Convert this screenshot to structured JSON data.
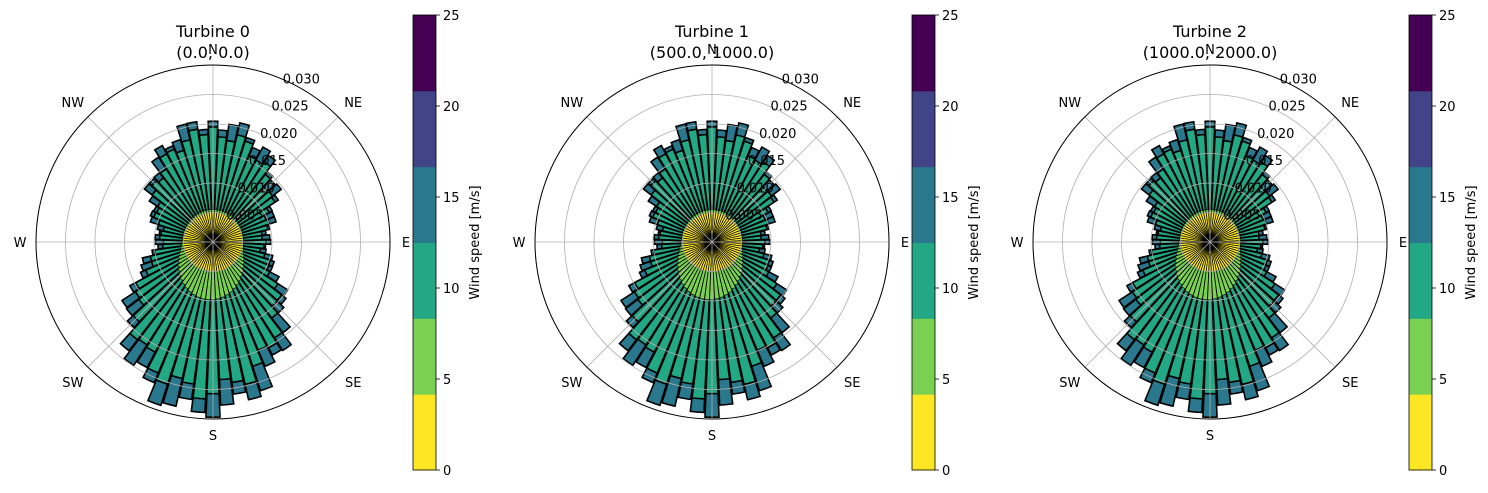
{
  "chart_data": [
    {
      "type": "windrose",
      "title_line1": "Turbine 0",
      "title_line2": "(0.0, 0.0)",
      "direction_labels": [
        "N",
        "NE",
        "E",
        "SE",
        "S",
        "SW",
        "W",
        "NW"
      ],
      "radial_ticks": [
        0.005,
        0.01,
        0.015,
        0.02,
        0.025,
        0.03
      ],
      "radial_tick_labels": [
        "0.005",
        "0.010",
        "0.015",
        "0.020",
        "0.025",
        "0.030"
      ],
      "rlim": [
        0,
        0.03
      ],
      "sectors": 72,
      "speed_bins": [
        [
          0,
          5
        ],
        [
          5,
          10
        ],
        [
          10,
          15
        ],
        [
          15,
          20
        ],
        [
          20,
          25
        ]
      ],
      "bin_colors": [
        "#fde725",
        "#7ad151",
        "#22a884",
        "#2a788e",
        "#414487",
        "#440154"
      ],
      "cumulative_frequency_by_bin": {
        "lobe_north_deg": 0,
        "lobe_south_deg": 185,
        "max_north": [
          0.005,
          0.0055,
          0.0185,
          0.0203
        ],
        "max_south": [
          0.005,
          0.0098,
          0.0253,
          0.0288
        ],
        "min_east_west": [
          0.005,
          0.0052,
          0.0085,
          0.0093
        ]
      },
      "grid": true
    },
    {
      "type": "windrose",
      "title_line1": "Turbine 1",
      "title_line2": "(500.0, 1000.0)",
      "direction_labels": [
        "N",
        "NE",
        "E",
        "SE",
        "S",
        "SW",
        "W",
        "NW"
      ],
      "radial_ticks": [
        0.005,
        0.01,
        0.015,
        0.02,
        0.025,
        0.03
      ],
      "radial_tick_labels": [
        "0.005",
        "0.010",
        "0.015",
        "0.020",
        "0.025",
        "0.030"
      ],
      "rlim": [
        0,
        0.03
      ],
      "sectors": 72,
      "speed_bins": [
        [
          0,
          5
        ],
        [
          5,
          10
        ],
        [
          10,
          15
        ],
        [
          15,
          20
        ],
        [
          20,
          25
        ]
      ],
      "bin_colors": [
        "#fde725",
        "#7ad151",
        "#22a884",
        "#2a788e",
        "#414487",
        "#440154"
      ],
      "cumulative_frequency_by_bin": {
        "lobe_north_deg": 0,
        "lobe_south_deg": 185,
        "max_north": [
          0.005,
          0.0055,
          0.0185,
          0.0203
        ],
        "max_south": [
          0.005,
          0.0098,
          0.0253,
          0.0288
        ],
        "min_east_west": [
          0.005,
          0.0052,
          0.0085,
          0.0093
        ]
      },
      "grid": true
    },
    {
      "type": "windrose",
      "title_line1": "Turbine 2",
      "title_line2": "(1000.0, 2000.0)",
      "direction_labels": [
        "N",
        "NE",
        "E",
        "SE",
        "S",
        "SW",
        "W",
        "NW"
      ],
      "radial_ticks": [
        0.005,
        0.01,
        0.015,
        0.02,
        0.025,
        0.03
      ],
      "radial_tick_labels": [
        "0.005",
        "0.010",
        "0.015",
        "0.020",
        "0.025",
        "0.030"
      ],
      "rlim": [
        0,
        0.03
      ],
      "sectors": 72,
      "speed_bins": [
        [
          0,
          5
        ],
        [
          5,
          10
        ],
        [
          10,
          15
        ],
        [
          15,
          20
        ],
        [
          20,
          25
        ]
      ],
      "bin_colors": [
        "#fde725",
        "#7ad151",
        "#22a884",
        "#2a788e",
        "#414487",
        "#440154"
      ],
      "cumulative_frequency_by_bin": {
        "lobe_north_deg": 0,
        "lobe_south_deg": 185,
        "max_north": [
          0.005,
          0.0055,
          0.0185,
          0.0203
        ],
        "max_south": [
          0.005,
          0.0098,
          0.0253,
          0.0288
        ],
        "min_east_west": [
          0.005,
          0.0052,
          0.0085,
          0.0093
        ]
      },
      "grid": true
    }
  ],
  "colorbar": {
    "label": "Wind speed [m/s]",
    "ticks": [
      0,
      5,
      10,
      15,
      20,
      25
    ],
    "tick_labels": [
      "0",
      "5",
      "10",
      "15",
      "20",
      "25"
    ],
    "colors": [
      "#fde725",
      "#7ad151",
      "#22a884",
      "#2a788e",
      "#414487",
      "#440154"
    ]
  }
}
